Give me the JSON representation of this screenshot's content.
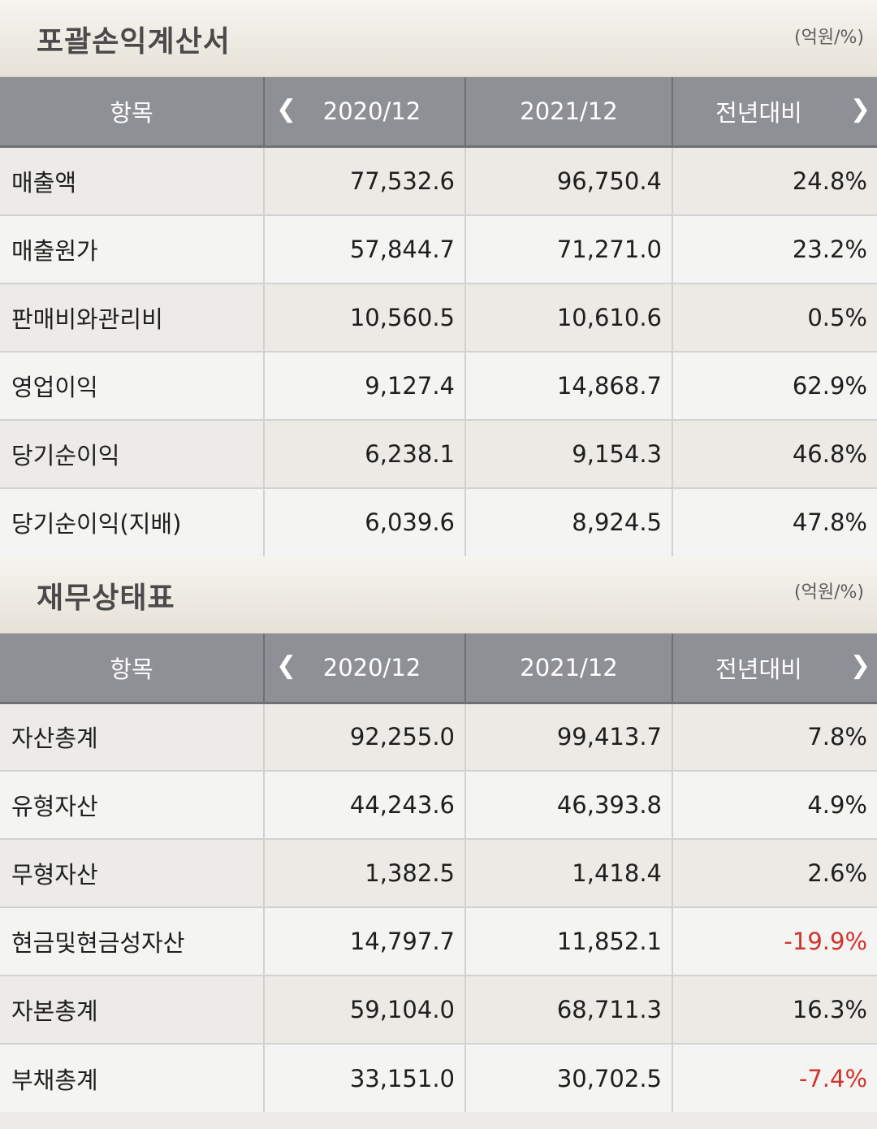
{
  "income": {
    "title": "포괄손익계산서",
    "unit": "(억원/%)",
    "headers": {
      "item": "항목",
      "prev": "2020/12",
      "cur": "2021/12",
      "yoy": "전년대비"
    },
    "rows": [
      {
        "label": "매출액",
        "prev": "77,532.6",
        "cur": "96,750.4",
        "yoy": "24.8%"
      },
      {
        "label": "매출원가",
        "prev": "57,844.7",
        "cur": "71,271.0",
        "yoy": "23.2%"
      },
      {
        "label": "판매비와관리비",
        "prev": "10,560.5",
        "cur": "10,610.6",
        "yoy": "0.5%"
      },
      {
        "label": "영업이익",
        "prev": "9,127.4",
        "cur": "14,868.7",
        "yoy": "62.9%"
      },
      {
        "label": "당기순이익",
        "prev": "6,238.1",
        "cur": "9,154.3",
        "yoy": "46.8%"
      },
      {
        "label": "당기순이익(지배)",
        "prev": "6,039.6",
        "cur": "8,924.5",
        "yoy": "47.8%"
      }
    ]
  },
  "balance": {
    "title": "재무상태표",
    "unit": "(억원/%)",
    "headers": {
      "item": "항목",
      "prev": "2020/12",
      "cur": "2021/12",
      "yoy": "전년대비"
    },
    "rows": [
      {
        "label": "자산총계",
        "prev": "92,255.0",
        "cur": "99,413.7",
        "yoy": "7.8%"
      },
      {
        "label": "유형자산",
        "prev": "44,243.6",
        "cur": "46,393.8",
        "yoy": "4.9%"
      },
      {
        "label": "무형자산",
        "prev": "1,382.5",
        "cur": "1,418.4",
        "yoy": "2.6%"
      },
      {
        "label": "현금및현금성자산",
        "prev": "14,797.7",
        "cur": "11,852.1",
        "yoy": "-19.9%"
      },
      {
        "label": "자본총계",
        "prev": "59,104.0",
        "cur": "68,711.3",
        "yoy": "16.3%"
      },
      {
        "label": "부채총계",
        "prev": "33,151.0",
        "cur": "30,702.5",
        "yoy": "-7.4%"
      }
    ]
  },
  "icons": {
    "prev": "chevron-left-icon",
    "next": "chevron-right-icon"
  },
  "colors": {
    "negative": "#d2342c",
    "header_bg": "#8f9096"
  }
}
